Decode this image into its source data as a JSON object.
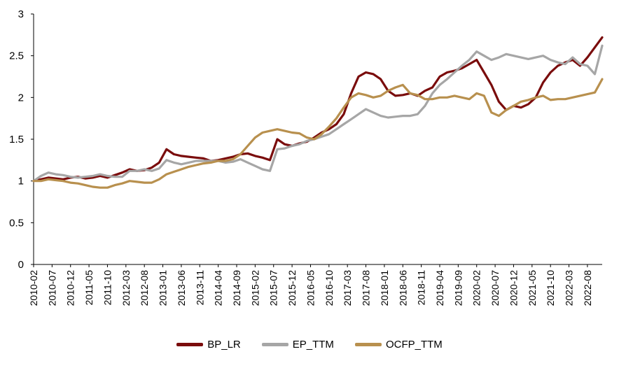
{
  "chart_data": {
    "type": "line",
    "title": "",
    "xlabel": "",
    "ylabel": "",
    "ylim": [
      0,
      3
    ],
    "y_ticks": [
      "0",
      "0.5",
      "1",
      "1.5",
      "2",
      "2.5",
      "3"
    ],
    "x_ticks": [
      "2010-02",
      "2010-07",
      "2010-12",
      "2011-05",
      "2011-10",
      "2012-03",
      "2012-08",
      "2013-01",
      "2013-06",
      "2013-11",
      "2014-04",
      "2014-09",
      "2015-02",
      "2015-07",
      "2015-12",
      "2016-05",
      "2016-10",
      "2017-03",
      "2017-08",
      "2018-01",
      "2018-06",
      "2018-11",
      "2019-04",
      "2019-09",
      "2020-02",
      "2020-07",
      "2020-12",
      "2021-05",
      "2021-10",
      "2022-03",
      "2022-08"
    ],
    "x_months": [
      "2010-02",
      "2010-04",
      "2010-06",
      "2010-08",
      "2010-10",
      "2010-12",
      "2011-02",
      "2011-04",
      "2011-06",
      "2011-08",
      "2011-10",
      "2011-12",
      "2012-02",
      "2012-04",
      "2012-06",
      "2012-08",
      "2012-10",
      "2012-12",
      "2013-02",
      "2013-04",
      "2013-06",
      "2013-08",
      "2013-10",
      "2013-12",
      "2014-02",
      "2014-04",
      "2014-06",
      "2014-08",
      "2014-10",
      "2014-12",
      "2015-02",
      "2015-04",
      "2015-06",
      "2015-08",
      "2015-10",
      "2015-12",
      "2016-02",
      "2016-04",
      "2016-06",
      "2016-08",
      "2016-10",
      "2016-12",
      "2017-02",
      "2017-04",
      "2017-06",
      "2017-08",
      "2017-10",
      "2017-12",
      "2018-02",
      "2018-04",
      "2018-06",
      "2018-08",
      "2018-10",
      "2018-12",
      "2019-02",
      "2019-04",
      "2019-06",
      "2019-08",
      "2019-10",
      "2019-12",
      "2020-02",
      "2020-04",
      "2020-06",
      "2020-08",
      "2020-10",
      "2020-12",
      "2021-02",
      "2021-04",
      "2021-06",
      "2021-08",
      "2021-10",
      "2021-12",
      "2022-02",
      "2022-04",
      "2022-06",
      "2022-08",
      "2022-10",
      "2022-12"
    ],
    "grid": false,
    "legend_position": "bottom-center",
    "series": [
      {
        "name": "BP_LR",
        "color": "#7a0c0c",
        "values": [
          1.0,
          1.02,
          1.04,
          1.03,
          1.02,
          1.04,
          1.05,
          1.03,
          1.04,
          1.06,
          1.04,
          1.07,
          1.1,
          1.14,
          1.12,
          1.13,
          1.16,
          1.22,
          1.38,
          1.32,
          1.3,
          1.29,
          1.28,
          1.27,
          1.24,
          1.25,
          1.27,
          1.29,
          1.32,
          1.33,
          1.3,
          1.28,
          1.25,
          1.5,
          1.44,
          1.42,
          1.45,
          1.47,
          1.52,
          1.58,
          1.62,
          1.68,
          1.8,
          2.05,
          2.25,
          2.3,
          2.28,
          2.22,
          2.08,
          2.02,
          2.03,
          2.05,
          2.02,
          2.08,
          2.12,
          2.25,
          2.3,
          2.32,
          2.35,
          2.4,
          2.45,
          2.3,
          2.15,
          1.95,
          1.85,
          1.9,
          1.88,
          1.92,
          2.0,
          2.18,
          2.3,
          2.38,
          2.42,
          2.45,
          2.38,
          2.48,
          2.6,
          2.72
        ]
      },
      {
        "name": "EP_TTM",
        "color": "#a6a6a6",
        "values": [
          1.0,
          1.06,
          1.1,
          1.08,
          1.07,
          1.05,
          1.04,
          1.05,
          1.06,
          1.08,
          1.06,
          1.05,
          1.05,
          1.12,
          1.12,
          1.14,
          1.12,
          1.15,
          1.25,
          1.22,
          1.2,
          1.22,
          1.24,
          1.24,
          1.24,
          1.24,
          1.22,
          1.23,
          1.26,
          1.22,
          1.18,
          1.14,
          1.12,
          1.38,
          1.39,
          1.42,
          1.44,
          1.48,
          1.5,
          1.53,
          1.56,
          1.62,
          1.68,
          1.74,
          1.8,
          1.86,
          1.82,
          1.78,
          1.76,
          1.77,
          1.78,
          1.78,
          1.8,
          1.9,
          2.05,
          2.15,
          2.22,
          2.3,
          2.38,
          2.45,
          2.55,
          2.5,
          2.45,
          2.48,
          2.52,
          2.5,
          2.48,
          2.46,
          2.48,
          2.5,
          2.45,
          2.42,
          2.4,
          2.48,
          2.4,
          2.38,
          2.28,
          2.62
        ]
      },
      {
        "name": "OCFP_TTM",
        "color": "#b8904e",
        "values": [
          1.0,
          1.0,
          1.02,
          1.01,
          1.0,
          0.98,
          0.97,
          0.95,
          0.93,
          0.92,
          0.92,
          0.95,
          0.97,
          1.0,
          0.99,
          0.98,
          0.98,
          1.02,
          1.08,
          1.11,
          1.14,
          1.17,
          1.19,
          1.21,
          1.22,
          1.24,
          1.24,
          1.26,
          1.32,
          1.42,
          1.52,
          1.58,
          1.6,
          1.62,
          1.6,
          1.58,
          1.57,
          1.52,
          1.5,
          1.56,
          1.65,
          1.75,
          1.88,
          2.0,
          2.05,
          2.03,
          2.0,
          2.02,
          2.08,
          2.12,
          2.15,
          2.05,
          2.03,
          1.98,
          1.98,
          2.0,
          2.0,
          2.02,
          2.0,
          1.98,
          2.05,
          2.02,
          1.82,
          1.78,
          1.85,
          1.9,
          1.95,
          1.97,
          2.0,
          2.02,
          1.97,
          1.98,
          1.98,
          2.0,
          2.02,
          2.04,
          2.06,
          2.22
        ]
      }
    ]
  },
  "legend": {
    "items": [
      "BP_LR",
      "EP_TTM",
      "OCFP_TTM"
    ]
  }
}
